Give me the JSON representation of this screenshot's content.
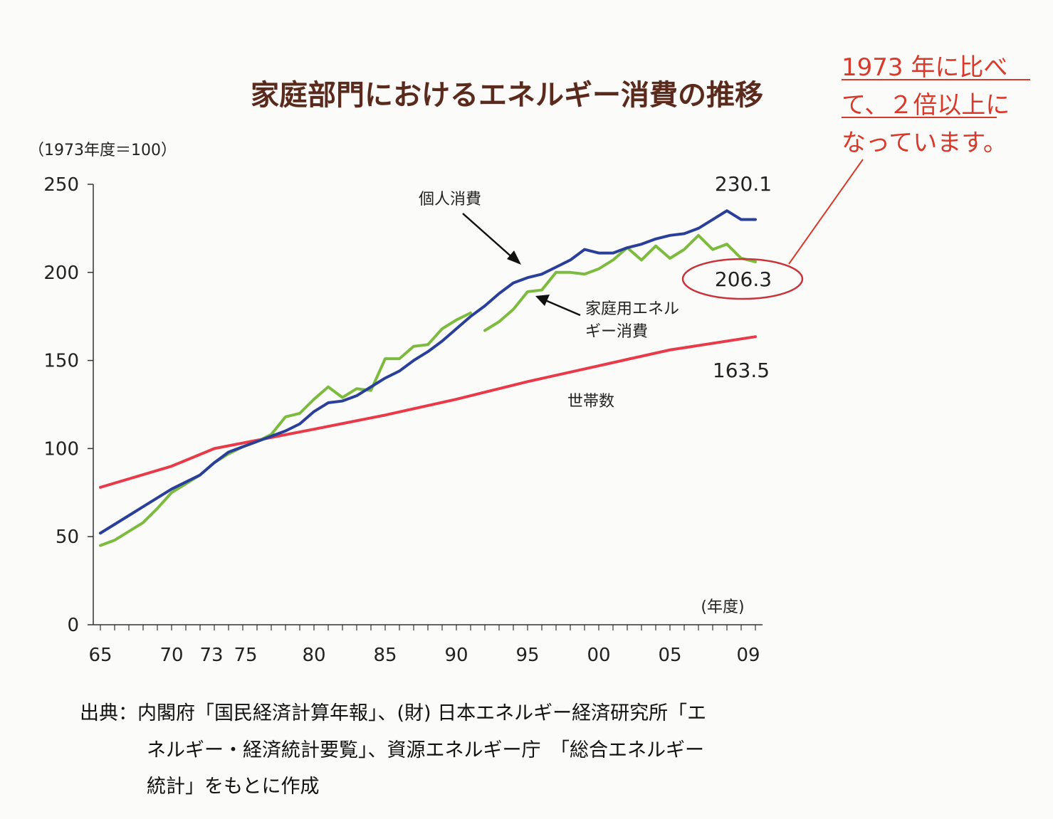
{
  "chart_data": {
    "type": "line",
    "title": "家庭部門におけるエネルギー消費の推移",
    "unit_label": "（1973年度＝100）",
    "xlabel": "(年度)",
    "ylim": [
      0,
      250
    ],
    "yticks": [
      "0",
      "50",
      "100",
      "150",
      "200",
      "250"
    ],
    "xlim": [
      1965,
      2009
    ],
    "xticks": [
      {
        "year": 1965,
        "label": "65"
      },
      {
        "year": 1970,
        "label": "70"
      },
      {
        "year": 1973,
        "label": "73"
      },
      {
        "year": 1975,
        "label": "75"
      },
      {
        "year": 1980,
        "label": "80"
      },
      {
        "year": 1985,
        "label": "85"
      },
      {
        "year": 1990,
        "label": "90"
      },
      {
        "year": 1995,
        "label": "95"
      },
      {
        "year": 2000,
        "label": "00"
      },
      {
        "year": 2005,
        "label": "05"
      },
      {
        "year": 2009,
        "label": "09"
      }
    ],
    "series": [
      {
        "name": "個人消費",
        "color": "#2a3f9a",
        "end_label": "230.1",
        "points": [
          [
            1965,
            52
          ],
          [
            1966,
            57
          ],
          [
            1967,
            62
          ],
          [
            1968,
            67
          ],
          [
            1969,
            72
          ],
          [
            1970,
            77
          ],
          [
            1971,
            81
          ],
          [
            1972,
            85
          ],
          [
            1973,
            92
          ],
          [
            1974,
            98
          ],
          [
            1975,
            101
          ],
          [
            1976,
            104
          ],
          [
            1977,
            107
          ],
          [
            1978,
            110
          ],
          [
            1979,
            114
          ],
          [
            1980,
            121
          ],
          [
            1981,
            126
          ],
          [
            1982,
            127
          ],
          [
            1983,
            130
          ],
          [
            1984,
            135
          ],
          [
            1985,
            140
          ],
          [
            1986,
            144
          ],
          [
            1987,
            150
          ],
          [
            1988,
            155
          ],
          [
            1989,
            161
          ],
          [
            1990,
            168
          ],
          [
            1991,
            175
          ],
          [
            1992,
            181
          ],
          [
            1993,
            188
          ],
          [
            1994,
            194
          ],
          [
            1995,
            197
          ],
          [
            1996,
            199
          ],
          [
            1997,
            203
          ],
          [
            1998,
            207
          ],
          [
            1999,
            213
          ],
          [
            2000,
            211
          ],
          [
            2001,
            211
          ],
          [
            2002,
            214
          ],
          [
            2003,
            216
          ],
          [
            2004,
            219
          ],
          [
            2005,
            221
          ],
          [
            2006,
            222
          ],
          [
            2007,
            225
          ],
          [
            2008,
            230
          ],
          [
            2009,
            235
          ],
          [
            2010,
            230
          ],
          [
            2011,
            230
          ]
        ]
      },
      {
        "name": "家庭用エネルギー消費",
        "color": "#7dbb3e",
        "end_label": "206.3",
        "points": [
          [
            1965,
            45
          ],
          [
            1966,
            48
          ],
          [
            1967,
            53
          ],
          [
            1968,
            58
          ],
          [
            1969,
            66
          ],
          [
            1970,
            75
          ],
          [
            1971,
            80
          ],
          [
            1972,
            85
          ],
          [
            1973,
            92
          ],
          [
            1974,
            97
          ],
          [
            1975,
            101
          ],
          [
            1976,
            104
          ],
          [
            1977,
            108
          ],
          [
            1978,
            118
          ],
          [
            1979,
            120
          ],
          [
            1980,
            128
          ],
          [
            1981,
            135
          ],
          [
            1982,
            129
          ],
          [
            1983,
            134
          ],
          [
            1984,
            133
          ],
          [
            1985,
            151
          ],
          [
            1986,
            151
          ],
          [
            1987,
            158
          ],
          [
            1988,
            159
          ],
          [
            1989,
            168
          ],
          [
            1990,
            173
          ],
          [
            1991,
            177
          ],
          [
            1992,
            167
          ],
          [
            1993,
            172
          ],
          [
            1994,
            179
          ],
          [
            1995,
            189
          ],
          [
            1996,
            190
          ],
          [
            1997,
            200
          ],
          [
            1998,
            200
          ],
          [
            1999,
            199
          ],
          [
            2000,
            202
          ],
          [
            2001,
            207
          ],
          [
            2002,
            214
          ],
          [
            2003,
            207
          ],
          [
            2004,
            215
          ],
          [
            2005,
            208
          ],
          [
            2006,
            213
          ],
          [
            2007,
            221
          ],
          [
            2008,
            213
          ],
          [
            2009,
            216
          ],
          [
            2010,
            208
          ],
          [
            2011,
            206
          ]
        ]
      },
      {
        "name": "世帯数",
        "color": "#e83a48",
        "end_label": "163.5",
        "points": [
          [
            1965,
            78
          ],
          [
            1970,
            90
          ],
          [
            1973,
            100
          ],
          [
            1980,
            111
          ],
          [
            1985,
            119
          ],
          [
            1990,
            128
          ],
          [
            1995,
            138
          ],
          [
            2000,
            147
          ],
          [
            2005,
            156
          ],
          [
            2011,
            163.5
          ]
        ]
      }
    ],
    "annotations": {
      "callout_lines": [
        "1973 年に比べ",
        "て、２倍以上に",
        "なっています。"
      ],
      "callout_color": "#d8392a"
    }
  },
  "source_lines": [
    "出典：内閣府「国民経済計算年報」、(財) 日本エネルギー経済研究所「エ",
    "ネルギー・経済統計要覧」、資源エネルギー庁　「総合エネルギー",
    "統計」をもとに作成"
  ]
}
